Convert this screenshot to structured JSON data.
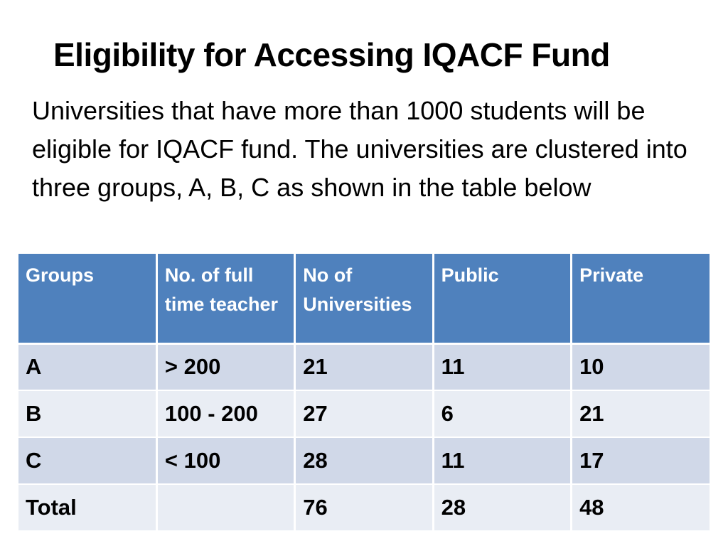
{
  "slide": {
    "title": "Eligibility for Accessing IQACF Fund",
    "body": "Universities that have more than 1000 students will be eligible for IQACF fund. The universities are clustered into three groups, A, B, C as shown in the table below"
  },
  "table": {
    "headers": [
      "Groups",
      "No. of full time teacher",
      "No of Universities",
      "Public",
      "Private"
    ],
    "rows": [
      [
        "A",
        "> 200",
        "21",
        "11",
        "10"
      ],
      [
        "B",
        "100 - 200",
        "27",
        "6",
        "21"
      ],
      [
        "C",
        "< 100",
        "28",
        "11",
        "17"
      ],
      [
        "Total",
        "",
        "76",
        "28",
        "48"
      ]
    ]
  },
  "colors": {
    "header_bg": "#4f81bd",
    "row_odd_bg": "#d0d8e8",
    "row_even_bg": "#e9edf4"
  }
}
